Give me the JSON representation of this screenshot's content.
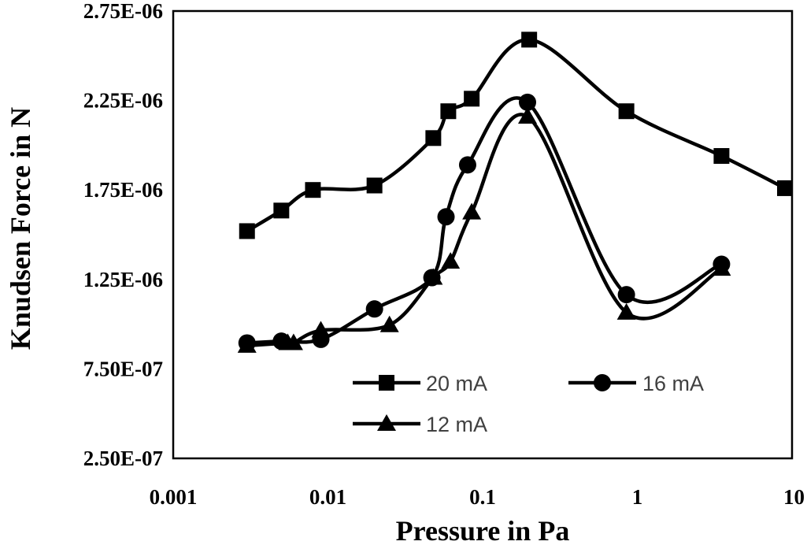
{
  "chart_data": {
    "type": "line",
    "title": "",
    "xlabel": "Pressure in Pa",
    "ylabel": "Knudsen Force in N",
    "x_scale": "log",
    "xlim": [
      0.001,
      10
    ],
    "ylim": [
      2.5e-07,
      2.75e-06
    ],
    "x_ticks": [
      0.001,
      0.01,
      0.1,
      1,
      10
    ],
    "x_tick_labels": [
      "0.001",
      "0.01",
      "0.1",
      "1",
      "10"
    ],
    "y_ticks": [
      2.5e-07,
      7.5e-07,
      1.25e-06,
      1.75e-06,
      2.25e-06,
      2.75e-06
    ],
    "y_tick_labels": [
      "2.50E-07",
      "7.50E-07",
      "1.25E-06",
      "1.75E-06",
      "2.25E-06",
      "2.75E-06"
    ],
    "grid": false,
    "legend_position": "inside-bottom-right",
    "series": [
      {
        "name": "20 mA",
        "marker": "square",
        "x": [
          0.003,
          0.005,
          0.008,
          0.02,
          0.048,
          0.06,
          0.085,
          0.2,
          0.85,
          3.5,
          9.0
        ],
        "y": [
          1.52e-06,
          1.635e-06,
          1.75e-06,
          1.775e-06,
          2.04e-06,
          2.19e-06,
          2.26e-06,
          2.59e-06,
          2.19e-06,
          1.94e-06,
          1.76e-06
        ]
      },
      {
        "name": "16 mA",
        "marker": "circle",
        "x": [
          0.003,
          0.005,
          0.009,
          0.02,
          0.047,
          0.058,
          0.08,
          0.195,
          0.85,
          3.5
        ],
        "y": [
          8.95e-07,
          9.05e-07,
          9.15e-07,
          1.085e-06,
          1.26e-06,
          1.6e-06,
          1.89e-06,
          2.24e-06,
          1.165e-06,
          1.335e-06
        ]
      },
      {
        "name": "12 mA",
        "marker": "triangle",
        "x": [
          0.003,
          0.0055,
          0.006,
          0.009,
          0.025,
          0.048,
          0.062,
          0.085,
          0.195,
          0.85,
          3.5
        ],
        "y": [
          8.8e-07,
          8.95e-07,
          8.95e-07,
          9.65e-07,
          9.95e-07,
          1.26e-06,
          1.35e-06,
          1.625e-06,
          2.16e-06,
          1.065e-06,
          1.31e-06
        ]
      }
    ]
  }
}
